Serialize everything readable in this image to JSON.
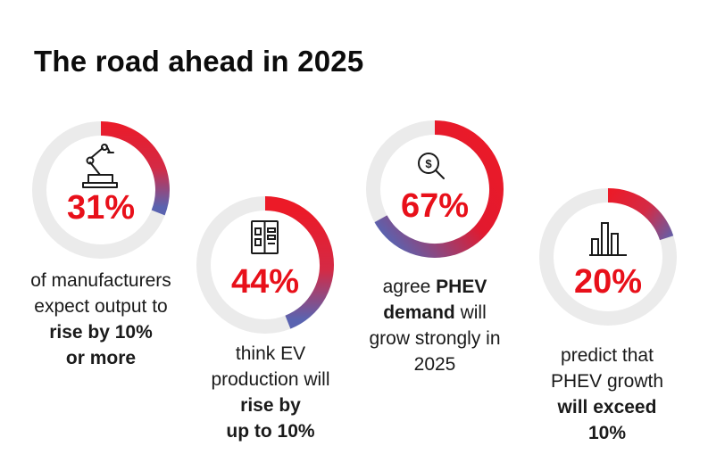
{
  "title": "The road ahead in 2025",
  "colors": {
    "track": "#ebebeb",
    "accent_red": "#ec1a27",
    "accent_blue": "#5a63b0",
    "value_text": "#e8101a"
  },
  "chart_data": {
    "type": "donut",
    "title": "The road ahead in 2025",
    "values": [
      31,
      44,
      67,
      20
    ],
    "unit": "%",
    "items": [
      {
        "value": 31,
        "label": "31%",
        "icon": "robot-arm-icon",
        "caption": [
          "of manufacturers",
          "expect output to",
          "rise by 10%",
          "or more"
        ],
        "caption_bold_lines": [
          2,
          3
        ]
      },
      {
        "value": 44,
        "label": "44%",
        "icon": "battery-module-icon",
        "caption": [
          "think EV",
          "production will",
          "rise by",
          "up to 10%"
        ],
        "caption_bold_lines": [
          2,
          3
        ]
      },
      {
        "value": 67,
        "label": "67%",
        "icon": "dollar-search-icon",
        "caption": [
          "agree PHEV",
          "demand will",
          "grow strongly in",
          "2025"
        ],
        "caption_bold_words": [
          "PHEV",
          "demand"
        ]
      },
      {
        "value": 20,
        "label": "20%",
        "icon": "bar-chart-icon",
        "caption": [
          "predict that",
          "PHEV growth",
          "will exceed",
          "10%"
        ],
        "caption_bold_lines": [
          2,
          3
        ]
      }
    ]
  }
}
